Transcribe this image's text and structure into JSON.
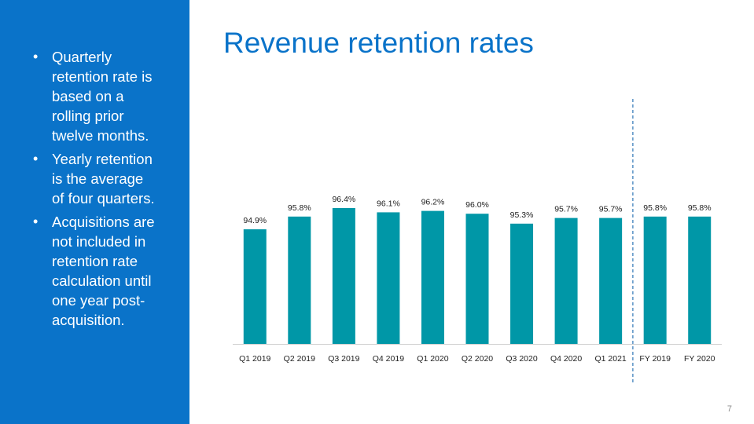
{
  "slide": {
    "title": "Revenue retention rates",
    "page_number": "7",
    "bullets": [
      "Quarterly retention rate is based on a rolling prior twelve months.",
      "Yearly retention is the average of four quarters.",
      "Acquisitions are not included in retention rate calculation until one year post-acquisition."
    ]
  },
  "colors": {
    "sidebar": "#0a73c9",
    "title": "#0a73c9",
    "bar": "#0097a7",
    "divider": "#2e75b6"
  },
  "chart_data": {
    "type": "bar",
    "title": "",
    "xlabel": "",
    "ylabel": "",
    "categories": [
      "Q1 2019",
      "Q2 2019",
      "Q3 2019",
      "Q4 2019",
      "Q1 2020",
      "Q2 2020",
      "Q3 2020",
      "Q4 2020",
      "Q1 2021",
      "FY 2019",
      "FY 2020"
    ],
    "values": [
      94.9,
      95.8,
      96.4,
      96.1,
      96.2,
      96.0,
      95.3,
      95.7,
      95.7,
      95.8,
      95.8
    ],
    "value_labels": [
      "94.9%",
      "95.8%",
      "96.4%",
      "96.1%",
      "96.2%",
      "96.0%",
      "95.3%",
      "95.7%",
      "95.7%",
      "95.8%",
      "95.8%"
    ],
    "ylim": [
      86.8,
      96.4
    ],
    "grid": false,
    "legend": "none",
    "divider_after_category": "Q1 2021"
  }
}
